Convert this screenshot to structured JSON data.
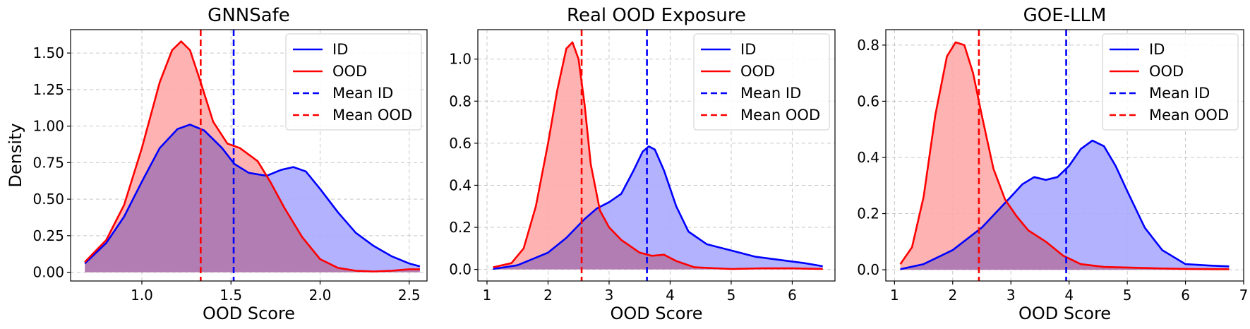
{
  "chart_data": [
    {
      "type": "area",
      "title": "GNNSafe",
      "xlabel": "OOD Score",
      "ylabel": "Density",
      "xlim": [
        0.6,
        2.6
      ],
      "ylim": [
        -0.06,
        1.66
      ],
      "xticks": [
        1.0,
        1.5,
        2.0,
        2.5
      ],
      "xtick_labels": [
        "1.0",
        "1.5",
        "2.0",
        "2.5"
      ],
      "yticks": [
        0.0,
        0.25,
        0.5,
        0.75,
        1.0,
        1.25,
        1.5
      ],
      "ytick_labels": [
        "0.00",
        "0.25",
        "0.50",
        "0.75",
        "1.00",
        "1.25",
        "1.50"
      ],
      "grid": true,
      "legend_position": "top-right",
      "series": [
        {
          "name": "ID",
          "color": "#0000ff",
          "fill": "#aaaaff",
          "x": [
            0.68,
            0.8,
            0.9,
            1.0,
            1.1,
            1.2,
            1.27,
            1.35,
            1.45,
            1.52,
            1.6,
            1.7,
            1.78,
            1.85,
            1.92,
            2.0,
            2.1,
            2.2,
            2.3,
            2.4,
            2.5,
            2.56
          ],
          "y": [
            0.06,
            0.2,
            0.38,
            0.62,
            0.85,
            0.98,
            1.01,
            0.97,
            0.85,
            0.74,
            0.68,
            0.66,
            0.7,
            0.72,
            0.69,
            0.57,
            0.41,
            0.27,
            0.18,
            0.11,
            0.06,
            0.04
          ]
        },
        {
          "name": "OOD",
          "color": "#ff0000",
          "fill": "#ffaaaa",
          "x": [
            0.68,
            0.8,
            0.9,
            1.0,
            1.1,
            1.17,
            1.22,
            1.27,
            1.33,
            1.4,
            1.48,
            1.55,
            1.65,
            1.72,
            1.8,
            1.9,
            2.0,
            2.1,
            2.2,
            2.3,
            2.4,
            2.5,
            2.56
          ],
          "y": [
            0.07,
            0.22,
            0.46,
            0.85,
            1.3,
            1.52,
            1.58,
            1.52,
            1.3,
            1.03,
            0.88,
            0.85,
            0.76,
            0.62,
            0.44,
            0.24,
            0.09,
            0.03,
            0.01,
            0.005,
            0.01,
            0.02,
            0.02
          ]
        }
      ],
      "mean_lines": [
        {
          "name": "Mean ID",
          "color": "#0000ff",
          "x": 1.515
        },
        {
          "name": "Mean OOD",
          "color": "#ff0000",
          "x": 1.33
        }
      ]
    },
    {
      "type": "area",
      "title": "Real OOD Exposure",
      "xlabel": "OOD Score",
      "ylabel": "",
      "xlim": [
        0.85,
        6.7
      ],
      "ylim": [
        -0.055,
        1.14
      ],
      "xticks": [
        1,
        2,
        3,
        4,
        5,
        6
      ],
      "xtick_labels": [
        "1",
        "2",
        "3",
        "4",
        "5",
        "6"
      ],
      "yticks": [
        0.0,
        0.2,
        0.4,
        0.6,
        0.8,
        1.0
      ],
      "ytick_labels": [
        "0.0",
        "0.2",
        "0.4",
        "0.6",
        "0.8",
        "1.0"
      ],
      "grid": true,
      "legend_position": "top-right",
      "series": [
        {
          "name": "ID",
          "color": "#0000ff",
          "fill": "#aaaaff",
          "x": [
            1.1,
            1.5,
            2.0,
            2.3,
            2.6,
            2.8,
            3.0,
            3.2,
            3.4,
            3.55,
            3.65,
            3.75,
            3.9,
            4.1,
            4.3,
            4.6,
            5.0,
            5.4,
            5.8,
            6.2,
            6.5
          ],
          "y": [
            0.002,
            0.02,
            0.08,
            0.15,
            0.24,
            0.29,
            0.32,
            0.36,
            0.47,
            0.56,
            0.585,
            0.57,
            0.47,
            0.3,
            0.18,
            0.12,
            0.09,
            0.06,
            0.045,
            0.03,
            0.015
          ]
        },
        {
          "name": "OOD",
          "color": "#ff0000",
          "fill": "#ffaaaa",
          "x": [
            1.1,
            1.4,
            1.6,
            1.8,
            2.0,
            2.15,
            2.3,
            2.4,
            2.5,
            2.6,
            2.7,
            2.85,
            3.0,
            3.2,
            3.5,
            3.7,
            3.9,
            4.1,
            4.4,
            5.0,
            5.5,
            6.0,
            6.5
          ],
          "y": [
            0.01,
            0.03,
            0.1,
            0.3,
            0.6,
            0.85,
            1.05,
            1.08,
            1.0,
            0.78,
            0.5,
            0.28,
            0.2,
            0.14,
            0.08,
            0.065,
            0.07,
            0.04,
            0.01,
            0.002,
            0.005,
            0.005,
            0.002
          ]
        }
      ],
      "mean_lines": [
        {
          "name": "Mean ID",
          "color": "#0000ff",
          "x": 3.62
        },
        {
          "name": "Mean OOD",
          "color": "#ff0000",
          "x": 2.55
        }
      ]
    },
    {
      "type": "area",
      "title": "GOE-LLM",
      "xlabel": "OOD Score",
      "ylabel": "",
      "xlim": [
        0.85,
        7.0
      ],
      "ylim": [
        -0.04,
        0.855
      ],
      "xticks": [
        1,
        2,
        3,
        4,
        5,
        6,
        7
      ],
      "xtick_labels": [
        "1",
        "2",
        "3",
        "4",
        "5",
        "6",
        "7"
      ],
      "yticks": [
        0.0,
        0.2,
        0.4,
        0.6,
        0.8
      ],
      "ytick_labels": [
        "0.0",
        "0.2",
        "0.4",
        "0.6",
        "0.8"
      ],
      "grid": true,
      "legend_position": "top-right",
      "series": [
        {
          "name": "ID",
          "color": "#0000ff",
          "fill": "#aaaaff",
          "x": [
            1.1,
            1.5,
            2.0,
            2.5,
            3.0,
            3.2,
            3.4,
            3.6,
            3.8,
            4.0,
            4.2,
            4.4,
            4.6,
            4.8,
            5.0,
            5.3,
            5.6,
            6.0,
            6.4,
            6.75
          ],
          "y": [
            0.002,
            0.02,
            0.07,
            0.15,
            0.26,
            0.305,
            0.33,
            0.32,
            0.33,
            0.37,
            0.43,
            0.46,
            0.44,
            0.37,
            0.28,
            0.15,
            0.07,
            0.02,
            0.015,
            0.012
          ]
        },
        {
          "name": "OOD",
          "color": "#ff0000",
          "fill": "#ffaaaa",
          "x": [
            1.1,
            1.3,
            1.5,
            1.7,
            1.9,
            2.05,
            2.2,
            2.35,
            2.5,
            2.7,
            2.9,
            3.1,
            3.3,
            3.6,
            3.9,
            4.2,
            4.6,
            5.0,
            5.5,
            6.0,
            6.5,
            6.75
          ],
          "y": [
            0.02,
            0.08,
            0.26,
            0.55,
            0.76,
            0.81,
            0.8,
            0.7,
            0.55,
            0.36,
            0.25,
            0.19,
            0.14,
            0.1,
            0.05,
            0.02,
            0.01,
            0.008,
            0.005,
            0.003,
            0.002,
            0.002
          ]
        }
      ],
      "mean_lines": [
        {
          "name": "Mean ID",
          "color": "#0000ff",
          "x": 3.95
        },
        {
          "name": "Mean OOD",
          "color": "#ff0000",
          "x": 2.45
        }
      ]
    }
  ]
}
